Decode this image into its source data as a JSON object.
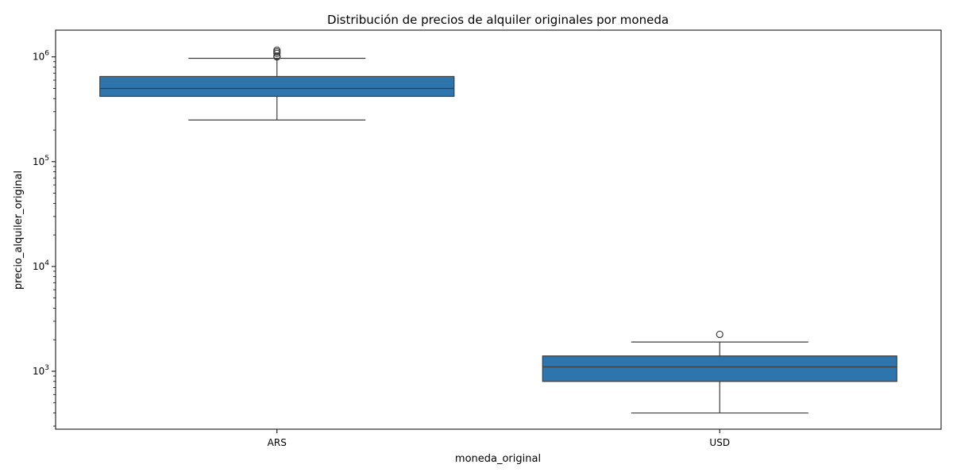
{
  "chart_data": {
    "type": "box",
    "title": "Distribución de precios de alquiler originales por moneda",
    "xlabel": "moneda_original",
    "ylabel": "precio_alquiler_original",
    "yscale": "log",
    "ylim": [
      280,
      1800000
    ],
    "yticks": [
      {
        "value": 1000,
        "base": "10",
        "exp": "3"
      },
      {
        "value": 10000,
        "base": "10",
        "exp": "4"
      },
      {
        "value": 100000,
        "base": "10",
        "exp": "5"
      },
      {
        "value": 1000000,
        "base": "10",
        "exp": "6"
      }
    ],
    "categories": [
      "ARS",
      "USD"
    ],
    "grid": false,
    "box_color": "#2e75ae",
    "line_color": "#3d3d3d",
    "boxes": [
      {
        "category": "ARS",
        "whisker_low": 250000,
        "q1": 420000,
        "median": 500000,
        "q3": 650000,
        "whisker_high": 970000,
        "outliers": [
          1000000,
          1020000,
          1080000,
          1120000,
          1160000
        ]
      },
      {
        "category": "USD",
        "whisker_low": 400,
        "q1": 800,
        "median": 1100,
        "q3": 1400,
        "whisker_high": 1900,
        "outliers": [
          2250
        ]
      }
    ]
  }
}
